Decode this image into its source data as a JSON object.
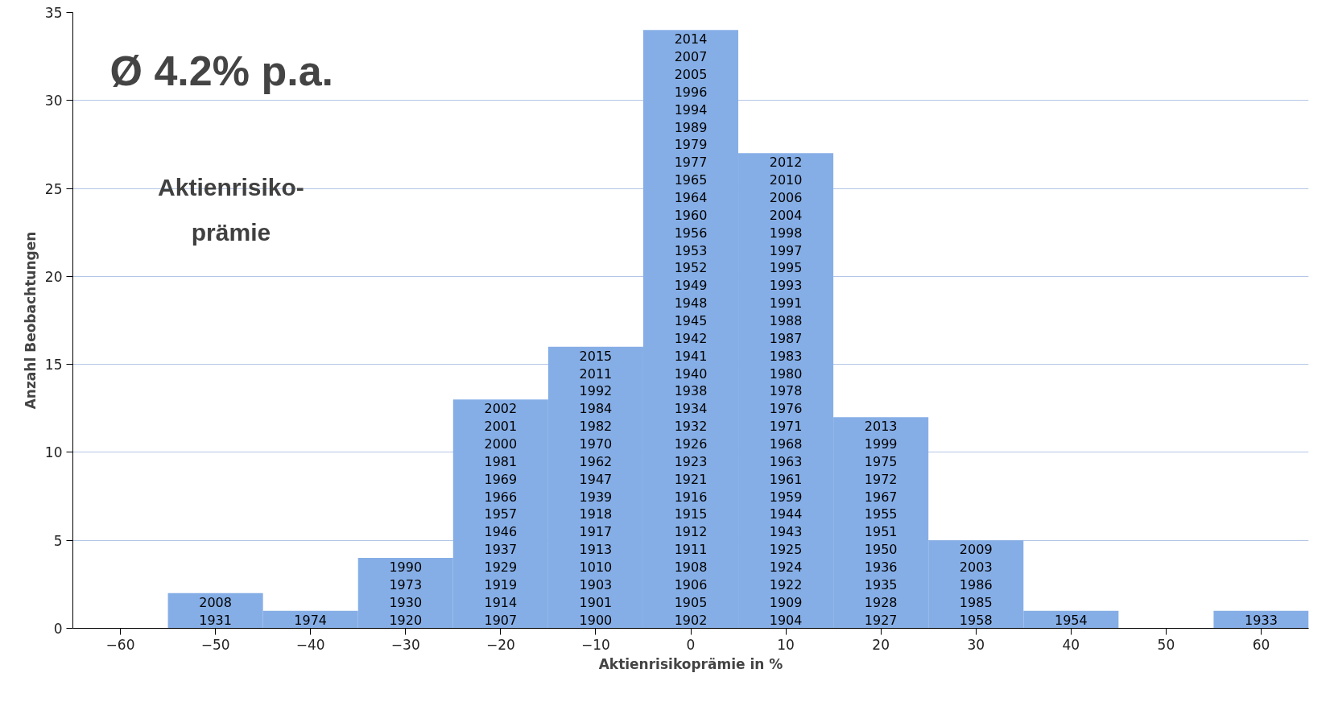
{
  "chart_data": {
    "type": "histogram",
    "xlabel": "Aktienrisikoprämie in %",
    "ylabel": "Anzahl Beobachtungen",
    "bins": [
      -65,
      -55,
      -45,
      -35,
      -25,
      -15,
      -5,
      5,
      15,
      25,
      35,
      45,
      55,
      65
    ],
    "values": [
      0,
      2,
      1,
      4,
      13,
      16,
      34,
      27,
      12,
      5,
      1,
      0,
      1
    ],
    "color": "#86aee6",
    "xlim": [
      -65,
      65
    ],
    "xticks": [
      -60,
      -50,
      -40,
      -30,
      -20,
      -10,
      0,
      10,
      20,
      30,
      40,
      50,
      60
    ],
    "ylim": [
      0,
      35
    ],
    "yticks": [
      0,
      5,
      10,
      15,
      20,
      25,
      30,
      35
    ],
    "grid": "y",
    "annotations": [
      "Ø 4.2% p.a.",
      "Aktienrisiko-\nprämie",
      "1931",
      "2008",
      "1974",
      "1920",
      "1930",
      "1973",
      "1990",
      "1907",
      "1914",
      "1919",
      "1929",
      "1937",
      "1946",
      "1957",
      "1966",
      "1969",
      "1981",
      "2000",
      "2001",
      "2002",
      "1900",
      "1901",
      "1903",
      "1010",
      "1913",
      "1917",
      "1918",
      "1939",
      "1947",
      "1962",
      "1970",
      "1982",
      "1984",
      "1992",
      "2011",
      "2015",
      "1902",
      "1905",
      "1906",
      "1908",
      "1911",
      "1912",
      "1915",
      "1916",
      "1921",
      "1923",
      "1926",
      "1932",
      "1934",
      "1938",
      "1940",
      "1941",
      "1942",
      "1945",
      "1948",
      "1949",
      "1952",
      "1953",
      "1956",
      "1960",
      "1964",
      "1965",
      "1977",
      "1979",
      "1989",
      "1994",
      "1996",
      "2005",
      "2007",
      "2014",
      "1904",
      "1909",
      "1922",
      "1924",
      "1925",
      "1943",
      "1944",
      "1959",
      "1961",
      "1963",
      "1968",
      "1971",
      "1976",
      "1978",
      "1980",
      "1983",
      "1987",
      "1988",
      "1991",
      "1993",
      "1995",
      "1997",
      "1998",
      "2004",
      "2006",
      "2010",
      "2012",
      "1927",
      "1928",
      "1935",
      "1936",
      "1950",
      "1951",
      "1955",
      "1967",
      "1972",
      "1975",
      "1999",
      "2013",
      "1958",
      "1985",
      "1986",
      "2003",
      "2009",
      "1954",
      "1933"
    ]
  }
}
